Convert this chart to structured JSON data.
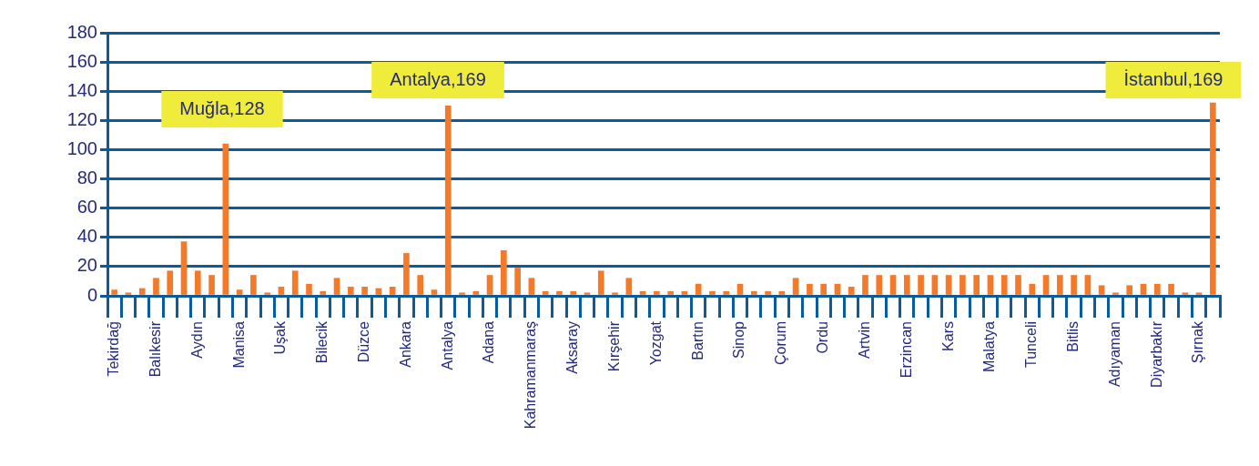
{
  "chart_data": {
    "type": "bar",
    "categories": [
      "Tekirdağ",
      null,
      null,
      "Balıkesir",
      null,
      null,
      "Aydın",
      null,
      null,
      "Manisa",
      null,
      null,
      "Uşak",
      null,
      null,
      "Bilecik",
      null,
      null,
      "Düzce",
      null,
      null,
      "Ankara",
      null,
      null,
      "Antalya",
      null,
      null,
      "Adana",
      null,
      null,
      "Kahramanmaraş",
      null,
      null,
      "Aksaray",
      null,
      null,
      "Kırşehir",
      null,
      null,
      "Yozgat",
      null,
      null,
      "Bartın",
      null,
      null,
      "Sinop",
      null,
      null,
      "Çorum",
      null,
      null,
      "Ordu",
      null,
      null,
      "Artvin",
      null,
      null,
      "Erzincan",
      null,
      null,
      "Kars",
      null,
      null,
      "Malatya",
      null,
      null,
      "Tunceli",
      null,
      null,
      "Bitlis",
      null,
      null,
      "Adıyaman",
      null,
      null,
      "Diyarbakır",
      null,
      null,
      "Şırnak",
      null
    ],
    "values": [
      4,
      2,
      5,
      12,
      17,
      37,
      17,
      14,
      104,
      4,
      14,
      2,
      6,
      17,
      8,
      3,
      12,
      6,
      6,
      5,
      6,
      29,
      14,
      4,
      130,
      2,
      3,
      14,
      31,
      19,
      12,
      3,
      3,
      3,
      2,
      17,
      2,
      12,
      3,
      3,
      3,
      3,
      8,
      3,
      3,
      8,
      3,
      3,
      3,
      12,
      8,
      8,
      8,
      6,
      14,
      14,
      14,
      14,
      14,
      14,
      14,
      14,
      14,
      14,
      14,
      14,
      8,
      14,
      14,
      14,
      14,
      7,
      2,
      7,
      8,
      8,
      8,
      2,
      2,
      132
    ],
    "color": "#f47a2a",
    "ylim": [
      0,
      180
    ],
    "yticks": [
      0,
      20,
      40,
      60,
      80,
      100,
      120,
      140,
      160,
      180
    ],
    "grid": "y",
    "annotations": [
      "Muğla,128",
      "Antalya,169",
      "İstanbul,169"
    ]
  }
}
